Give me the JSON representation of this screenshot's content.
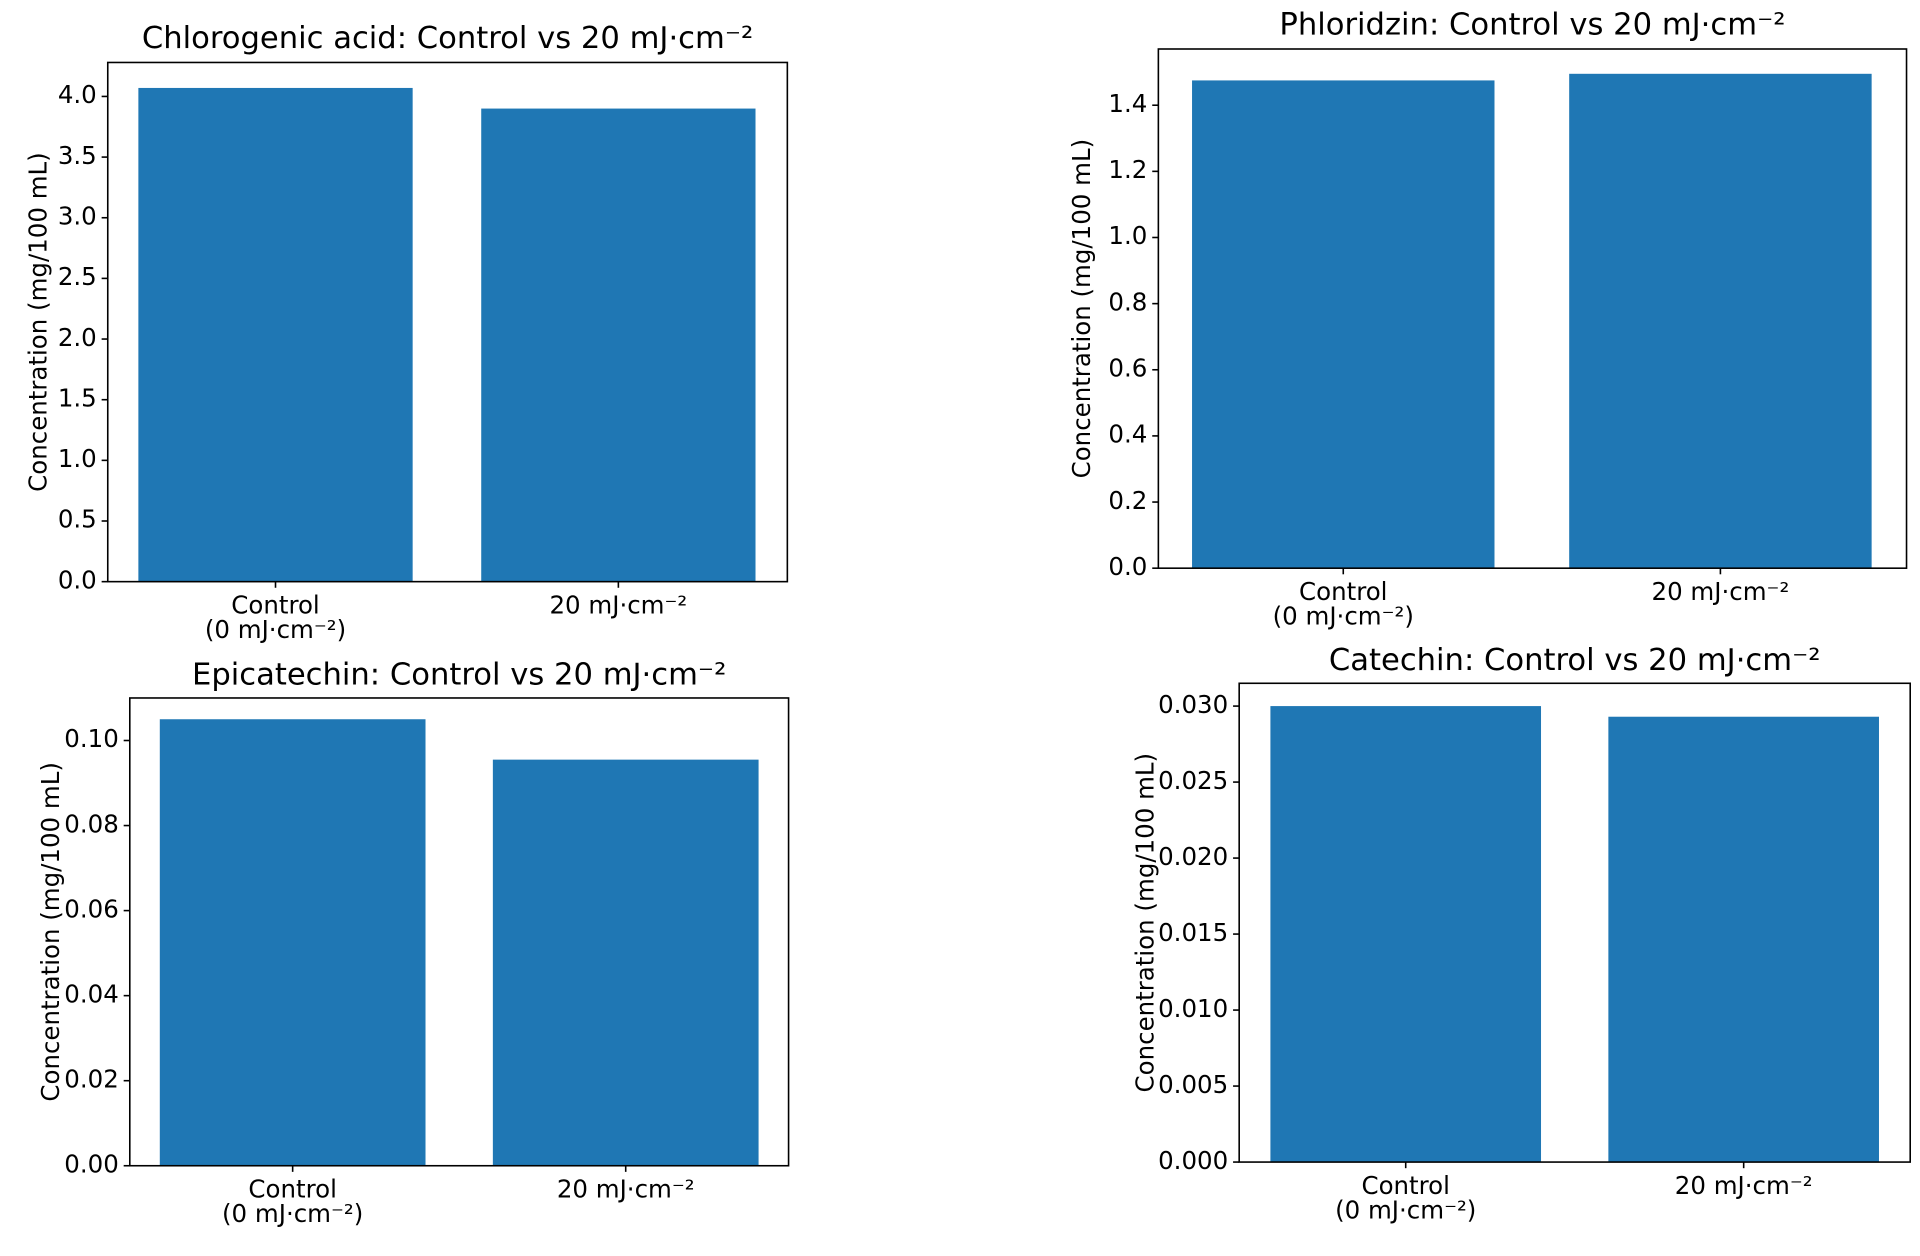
{
  "chart_data": [
    {
      "type": "bar",
      "title": "Chlorogenic acid: Control vs 20 mJ·cm⁻²",
      "ylabel": "Concentration (mg/100 mL)",
      "xlabel": "",
      "categories": [
        [
          "Control",
          "(0 mJ·cm⁻²)"
        ],
        [
          "20 mJ·cm⁻²"
        ]
      ],
      "values": [
        4.07,
        3.9
      ],
      "ylim": [
        0,
        4.28
      ],
      "yticks": [
        0.0,
        0.5,
        1.0,
        1.5,
        2.0,
        2.5,
        3.0,
        3.5,
        4.0
      ],
      "ytick_labels": [
        "0.0",
        "0.5",
        "1.0",
        "1.5",
        "2.0",
        "2.5",
        "3.0",
        "3.5",
        "4.0"
      ],
      "color": "#1f77b4",
      "grid": false
    },
    {
      "type": "bar",
      "title": "Phloridzin: Control vs 20 mJ·cm⁻²",
      "ylabel": "Concentration (mg/100 mL)",
      "xlabel": "",
      "categories": [
        [
          "Control",
          "(0 mJ·cm⁻²)"
        ],
        [
          "20 mJ·cm⁻²"
        ]
      ],
      "values": [
        1.475,
        1.495
      ],
      "ylim": [
        0,
        1.57
      ],
      "yticks": [
        0.0,
        0.2,
        0.4,
        0.6,
        0.8,
        1.0,
        1.2,
        1.4
      ],
      "ytick_labels": [
        "0.0",
        "0.2",
        "0.4",
        "0.6",
        "0.8",
        "1.0",
        "1.2",
        "1.4"
      ],
      "color": "#1f77b4",
      "grid": false
    },
    {
      "type": "bar",
      "title": "Epicatechin: Control vs 20 mJ·cm⁻²",
      "ylabel": "Concentration (mg/100 mL)",
      "xlabel": "",
      "categories": [
        [
          "Control",
          "(0 mJ·cm⁻²)"
        ],
        [
          "20 mJ·cm⁻²"
        ]
      ],
      "values": [
        0.105,
        0.0955
      ],
      "ylim": [
        0,
        0.11
      ],
      "yticks": [
        0.0,
        0.02,
        0.04,
        0.06,
        0.08,
        0.1
      ],
      "ytick_labels": [
        "0.00",
        "0.02",
        "0.04",
        "0.06",
        "0.08",
        "0.10"
      ],
      "color": "#1f77b4",
      "grid": false
    },
    {
      "type": "bar",
      "title": "Catechin: Control vs 20 mJ·cm⁻²",
      "ylabel": "Concentration (mg/100 mL)",
      "xlabel": "",
      "categories": [
        [
          "Control",
          "(0 mJ·cm⁻²)"
        ],
        [
          "20 mJ·cm⁻²"
        ]
      ],
      "values": [
        0.03,
        0.0293
      ],
      "ylim": [
        0,
        0.0315
      ],
      "yticks": [
        0.0,
        0.005,
        0.01,
        0.015,
        0.02,
        0.025,
        0.03
      ],
      "ytick_labels": [
        "0.000",
        "0.005",
        "0.010",
        "0.015",
        "0.020",
        "0.025",
        "0.030"
      ],
      "color": "#1f77b4",
      "grid": false
    }
  ]
}
